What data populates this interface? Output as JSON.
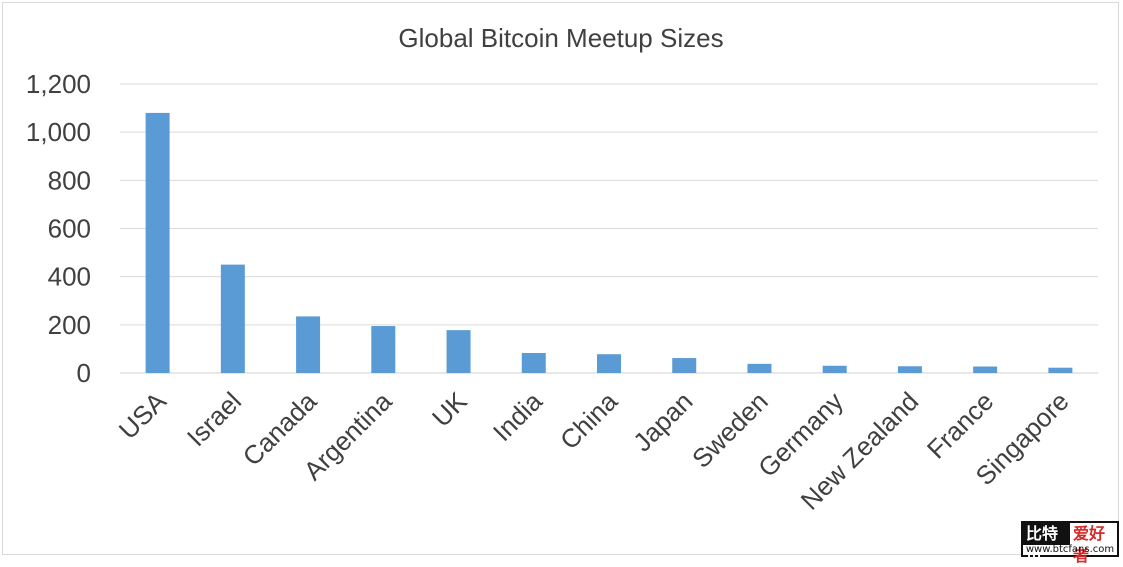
{
  "chart_data": {
    "type": "bar",
    "title": "Global Bitcoin Meetup Sizes",
    "categories": [
      "USA",
      "Israel",
      "Canada",
      "Argentina",
      "UK",
      "India",
      "China",
      "Japan",
      "Sweden",
      "Germany",
      "New Zealand",
      "France",
      "Singapore"
    ],
    "values": [
      1080,
      450,
      235,
      195,
      178,
      83,
      78,
      62,
      38,
      30,
      28,
      27,
      22
    ],
    "ylim": [
      0,
      1200
    ],
    "yticks": [
      0,
      200,
      400,
      600,
      800,
      1000,
      1200
    ],
    "ytick_labels": [
      "0",
      "200",
      "400",
      "600",
      "800",
      "1,000",
      "1,200"
    ],
    "bar_color": "#5b9bd5",
    "grid": true,
    "legend": "none"
  },
  "watermark": {
    "left_text": "比特币",
    "right_text": "爱好者",
    "url_text": "www.btcfans.com"
  }
}
